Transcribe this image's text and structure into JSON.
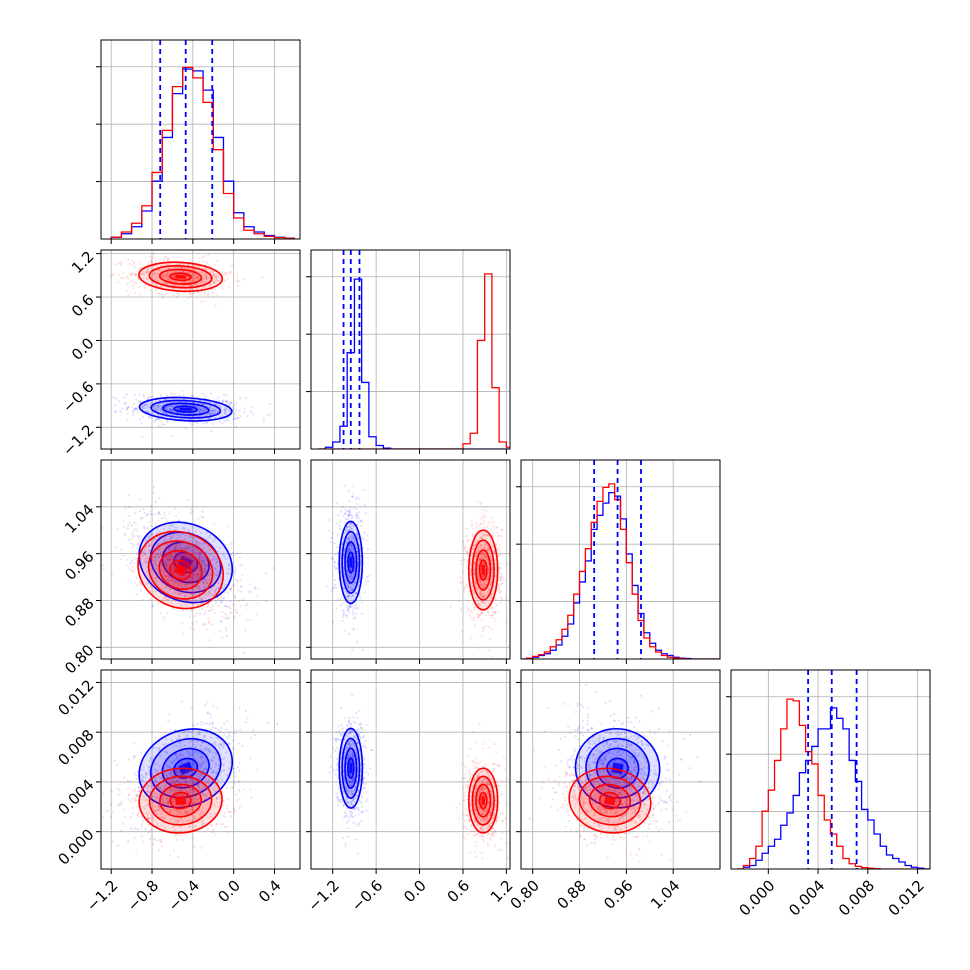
{
  "chart_data": {
    "type": "scatter",
    "title": "",
    "layout": "corner plot, 4x4 lower triangle; diagonal = 1D histograms, off-diagonal = 2D scatter with density contours",
    "grid": true,
    "legend": "none",
    "colors": {
      "series_blue": "#0000ff",
      "series_red": "#ff0000"
    },
    "parameters": [
      {
        "id": "p0",
        "range": [
          -1.3,
          0.65
        ],
        "ticks": [
          -1.2,
          -0.8,
          -0.4,
          0.0,
          0.4
        ],
        "tick_labels": [
          "−1.2",
          "−0.8",
          "−0.4",
          "0.0",
          "0.4"
        ],
        "hist_blue_quantiles": [
          -0.72,
          -0.47,
          -0.21
        ],
        "hist_bins": [
          -1.2,
          -1.1,
          -1.0,
          -0.9,
          -0.8,
          -0.7,
          -0.6,
          -0.5,
          -0.4,
          -0.3,
          -0.2,
          -0.1,
          0.0,
          0.1,
          0.2,
          0.3,
          0.4,
          0.5
        ],
        "hist_blue": [
          0.01,
          0.03,
          0.07,
          0.16,
          0.33,
          0.58,
          0.83,
          0.97,
          0.96,
          0.85,
          0.58,
          0.33,
          0.15,
          0.07,
          0.04,
          0.02,
          0.01,
          0.005
        ],
        "hist_red": [
          0.01,
          0.04,
          0.09,
          0.19,
          0.38,
          0.62,
          0.87,
          0.98,
          0.92,
          0.78,
          0.51,
          0.26,
          0.12,
          0.05,
          0.03,
          0.015,
          0.008,
          0.004
        ]
      },
      {
        "id": "p1",
        "range": [
          -1.5,
          1.25
        ],
        "ticks": [
          -1.2,
          -0.6,
          0.0,
          0.6,
          1.2
        ],
        "tick_labels": [
          "−1.2",
          "−0.6",
          "0.0",
          "0.6",
          "1.2"
        ],
        "hist_blue_quantiles": [
          -1.05,
          -0.95,
          -0.83
        ],
        "hist_bins": [
          -1.4,
          -1.3,
          -1.2,
          -1.1,
          -1.0,
          -0.9,
          -0.8,
          -0.7,
          -0.6,
          -0.5,
          -0.4,
          -0.3,
          -0.2,
          -0.1,
          0.0,
          0.1,
          0.2,
          0.3,
          0.4,
          0.5,
          0.6,
          0.7,
          0.8,
          0.9,
          1.0,
          1.1,
          1.2
        ],
        "hist_blue": [
          0,
          0.01,
          0.04,
          0.13,
          0.55,
          0.97,
          0.38,
          0.07,
          0.02,
          0.005,
          0,
          0,
          0,
          0,
          0,
          0,
          0,
          0,
          0,
          0,
          0,
          0,
          0,
          0,
          0,
          0,
          0
        ],
        "hist_red": [
          0,
          0,
          0,
          0,
          0,
          0,
          0,
          0,
          0,
          0,
          0,
          0,
          0,
          0,
          0,
          0,
          0,
          0,
          0,
          0,
          0.03,
          0.09,
          0.62,
          1.0,
          0.35,
          0.04,
          0.01
        ]
      },
      {
        "id": "p2",
        "range": [
          0.78,
          1.12
        ],
        "ticks": [
          0.8,
          0.88,
          0.96,
          1.04
        ],
        "tick_labels": [
          "0.80",
          "0.88",
          "0.96",
          "1.04"
        ],
        "hist_blue_quantiles": [
          0.905,
          0.945,
          0.985
        ],
        "hist_bins": [
          0.78,
          0.79,
          0.8,
          0.81,
          0.82,
          0.83,
          0.84,
          0.85,
          0.86,
          0.87,
          0.88,
          0.89,
          0.9,
          0.91,
          0.92,
          0.93,
          0.94,
          0.95,
          0.96,
          0.97,
          0.98,
          0.99,
          1.0,
          1.01,
          1.02,
          1.03,
          1.04,
          1.05,
          1.06,
          1.07,
          1.08,
          1.09,
          1.1,
          1.11
        ],
        "hist_blue": [
          0,
          0.005,
          0.01,
          0.02,
          0.03,
          0.05,
          0.08,
          0.13,
          0.2,
          0.32,
          0.44,
          0.56,
          0.74,
          0.82,
          0.89,
          0.95,
          0.93,
          0.8,
          0.6,
          0.42,
          0.26,
          0.15,
          0.09,
          0.05,
          0.03,
          0.02,
          0.01,
          0.005,
          0.003,
          0,
          0,
          0,
          0,
          0
        ],
        "hist_red": [
          0,
          0.005,
          0.015,
          0.025,
          0.04,
          0.07,
          0.11,
          0.17,
          0.25,
          0.37,
          0.5,
          0.63,
          0.78,
          0.9,
          0.98,
          1.0,
          0.91,
          0.74,
          0.55,
          0.37,
          0.22,
          0.12,
          0.07,
          0.04,
          0.02,
          0.01,
          0.005,
          0.003,
          0,
          0,
          0,
          0,
          0,
          0
        ]
      },
      {
        "id": "p3",
        "range": [
          -0.003,
          0.013
        ],
        "ticks": [
          0.0,
          0.004,
          0.008,
          0.012
        ],
        "tick_labels": [
          "0.000",
          "0.004",
          "0.008",
          "0.012"
        ],
        "hist_blue_quantiles": [
          0.0032,
          0.0051,
          0.0071
        ],
        "hist_bins": [
          -0.0025,
          -0.002,
          -0.0015,
          -0.001,
          -0.0005,
          0.0,
          0.0005,
          0.001,
          0.0015,
          0.002,
          0.0025,
          0.003,
          0.0035,
          0.004,
          0.0045,
          0.005,
          0.0055,
          0.006,
          0.0065,
          0.007,
          0.0075,
          0.008,
          0.0085,
          0.009,
          0.0095,
          0.01,
          0.0105,
          0.011,
          0.0115,
          0.012,
          0.0125
        ],
        "hist_blue": [
          0,
          0.01,
          0.02,
          0.05,
          0.09,
          0.13,
          0.17,
          0.25,
          0.32,
          0.42,
          0.55,
          0.62,
          0.7,
          0.8,
          0.8,
          0.92,
          0.86,
          0.8,
          0.62,
          0.5,
          0.34,
          0.28,
          0.2,
          0.13,
          0.08,
          0.06,
          0.04,
          0.02,
          0.01,
          0.005,
          0
        ],
        "hist_red": [
          0,
          0.02,
          0.06,
          0.13,
          0.33,
          0.45,
          0.62,
          0.8,
          0.97,
          0.96,
          0.82,
          0.67,
          0.6,
          0.42,
          0.28,
          0.2,
          0.13,
          0.06,
          0.03,
          0.015,
          0.008,
          0.004,
          0.002,
          0,
          0,
          0,
          0,
          0,
          0,
          0,
          0
        ]
      }
    ],
    "series": [
      {
        "name": "",
        "color": "#0000ff",
        "means": [
          -0.47,
          -0.95,
          0.945,
          0.0051
        ],
        "sigmas": [
          0.22,
          0.08,
          0.035,
          0.0016
        ],
        "corr": {
          "p1_p0": -0.2,
          "p2_p0": -0.5,
          "p3_p0": 0.45,
          "p2_p1": 0.0,
          "p3_p1": 0.0,
          "p3_p2": -0.2
        }
      },
      {
        "name": "",
        "color": "#ff0000",
        "means": [
          -0.52,
          0.88,
          0.932,
          0.0025
        ],
        "sigmas": [
          0.2,
          0.1,
          0.034,
          0.0013
        ],
        "corr": {
          "p1_p0": -0.15,
          "p2_p0": -0.5,
          "p3_p0": 0.1,
          "p2_p1": 0.0,
          "p3_p1": 0.0,
          "p3_p2": -0.2
        }
      }
    ]
  }
}
